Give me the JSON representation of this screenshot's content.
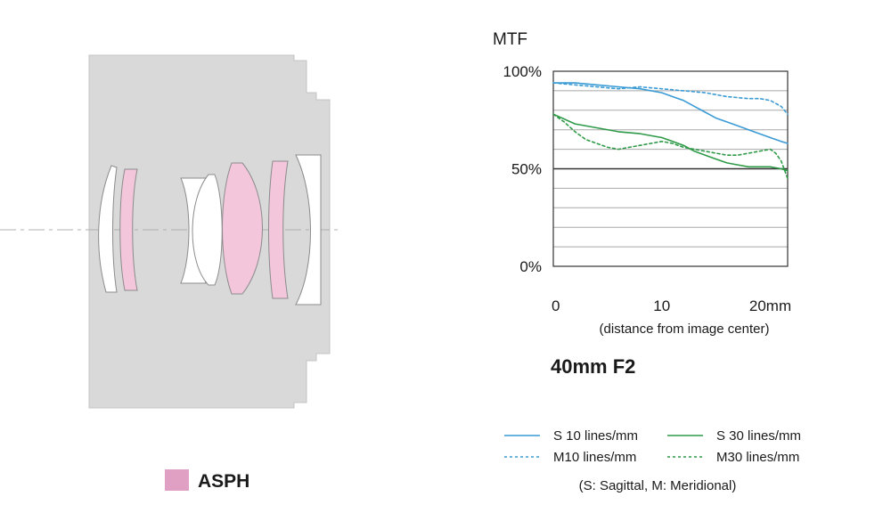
{
  "diagram": {
    "legend_label": "ASPH",
    "colors": {
      "housing": "#d9d9d9",
      "housing_stroke": "#c4c4c4",
      "lens_plain": "#ffffff",
      "lens_asph": "#f3c6dc",
      "lens_stroke": "#8c8c8c",
      "legend_swatch": "#dfa0c3",
      "axis_line": "#b0b0b0"
    }
  },
  "chart_data": {
    "type": "line",
    "title": "MTF",
    "subtitle": "40mm F2",
    "xlabel": "(distance from image center)",
    "x_ticks": [
      {
        "value": 0,
        "label": "0"
      },
      {
        "value": 10,
        "label": "10"
      },
      {
        "value": 20,
        "label": "20mm"
      }
    ],
    "y_ticks": [
      {
        "value": 0,
        "label": "0%"
      },
      {
        "value": 50,
        "label": "50%"
      },
      {
        "value": 100,
        "label": "100%"
      }
    ],
    "xlim": [
      0,
      21.6
    ],
    "ylim": [
      0,
      100
    ],
    "grid_step": 10,
    "legend_position": "bottom",
    "legend_note": "(S: Sagittal, M: Meridional)",
    "series": [
      {
        "name": "S 10 lines/mm",
        "color": "#3a9bd5",
        "dash": "solid",
        "x": [
          0,
          2,
          4,
          6,
          8,
          10,
          11,
          12,
          13,
          14,
          15,
          16,
          17,
          18,
          19,
          20,
          21,
          21.6
        ],
        "y": [
          94,
          94,
          93,
          92,
          91,
          89,
          87,
          85,
          82,
          79,
          76,
          74,
          72,
          70,
          68,
          66,
          64,
          63
        ]
      },
      {
        "name": "M10 lines/mm",
        "color": "#3a9bd5",
        "dash": "dashed",
        "x": [
          0,
          2,
          4,
          6,
          8,
          10,
          12,
          14,
          16,
          18,
          19,
          20,
          21,
          21.6
        ],
        "y": [
          94,
          93,
          92,
          91,
          92,
          91,
          90,
          89,
          87,
          86,
          86,
          85,
          82,
          78
        ]
      },
      {
        "name": "S 30 lines/mm",
        "color": "#2e9a48",
        "dash": "solid",
        "x": [
          0,
          2,
          4,
          6,
          8,
          10,
          11,
          12,
          13,
          14,
          15,
          16,
          17,
          18,
          19,
          20,
          21,
          21.6
        ],
        "y": [
          78,
          73,
          71,
          69,
          68,
          66,
          64,
          62,
          59,
          57,
          55,
          53,
          52,
          51,
          51,
          51,
          50,
          49
        ]
      },
      {
        "name": "M30 lines/mm",
        "color": "#2e9a48",
        "dash": "dashed",
        "x": [
          0,
          1,
          2,
          3,
          4,
          5,
          6,
          7,
          8,
          9,
          10,
          11,
          12,
          13,
          14,
          15,
          16,
          17,
          18,
          19,
          20,
          20.5,
          21,
          21.6
        ],
        "y": [
          78,
          74,
          69,
          65,
          63,
          61,
          60,
          61,
          62,
          63,
          64,
          63,
          61,
          60,
          59,
          58,
          57,
          57,
          58,
          59,
          60,
          58,
          54,
          45
        ]
      }
    ]
  }
}
